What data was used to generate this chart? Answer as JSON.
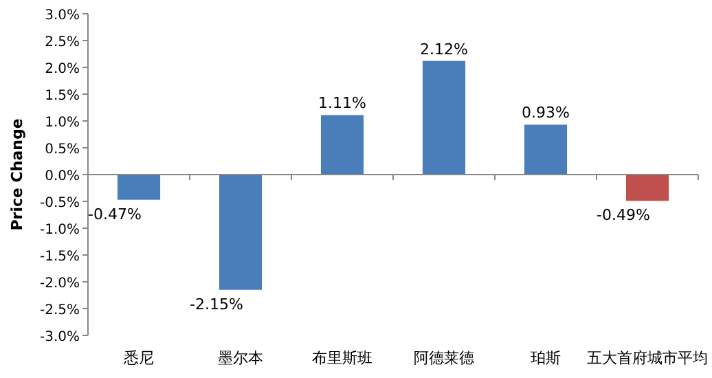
{
  "chart_data": {
    "type": "bar",
    "ylabel": "Price Change",
    "categories": [
      "悉尼",
      "墨尔本",
      "布里斯班",
      "阿德莱德",
      "珀斯",
      "五大首府城市平均"
    ],
    "values": [
      -0.47,
      -2.15,
      1.11,
      2.12,
      0.93,
      -0.49
    ],
    "colors": [
      "#4a7ebb",
      "#4a7ebb",
      "#4a7ebb",
      "#4a7ebb",
      "#4a7ebb",
      "#c0504d"
    ],
    "value_labels": [
      "-0.47%",
      "-2.15%",
      "1.11%",
      "2.12%",
      "0.93%",
      "-0.49%"
    ],
    "ylim": [
      -3,
      3
    ],
    "yticks": [
      {
        "value": -3,
        "label": "-3.0%"
      },
      {
        "value": -2.5,
        "label": "-2.5%"
      },
      {
        "value": -2,
        "label": "-2.0%"
      },
      {
        "value": -1.5,
        "label": "-1.5%"
      },
      {
        "value": -1,
        "label": "-1.0%"
      },
      {
        "value": -0.5,
        "label": "-0.5%"
      },
      {
        "value": 0,
        "label": "0.0%"
      },
      {
        "value": 0.5,
        "label": "0.5%"
      },
      {
        "value": 1,
        "label": "1.0%"
      },
      {
        "value": 1.5,
        "label": "1.5%"
      },
      {
        "value": 2,
        "label": "2.0%"
      },
      {
        "value": 2.5,
        "label": "2.5%"
      },
      {
        "value": 3,
        "label": "3.0%"
      }
    ]
  }
}
